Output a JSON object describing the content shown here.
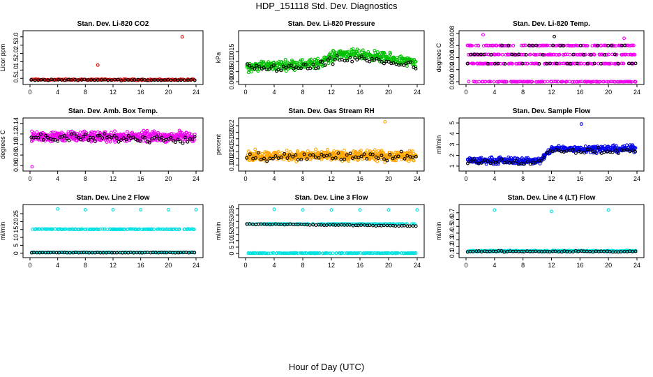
{
  "figure_title": "HDP_151118  Std. Dev. Diagnostics",
  "x_caption": "Hour of Day (UTC)",
  "chart_data": [
    {
      "type": "scatter",
      "title": "Stan. Dev. Li-820 CO2",
      "ylabel": "Licor ppm",
      "xlim": [
        0,
        24
      ],
      "ylim": [
        0.3,
        3.2
      ],
      "xticks": [
        0,
        4,
        8,
        12,
        16,
        20,
        24
      ],
      "yticks": [
        0.5,
        1.0,
        1.5,
        2.0,
        2.5,
        3.0
      ],
      "ytick_labels": [
        "0.5",
        "1.0",
        "1.5",
        "2.0",
        "2.5",
        "3.0"
      ],
      "series": [
        {
          "name": "red",
          "color": "#e00000",
          "base": 0.42,
          "spread": 0.06,
          "n": 140,
          "outliers": [
            {
              "x": 9.8,
              "y": 1.3
            },
            {
              "x": 22.0,
              "y": 3.0
            }
          ]
        },
        {
          "name": "black",
          "color": "#000000",
          "base": 0.4,
          "spread": 0.05,
          "n": 50,
          "outliers": []
        }
      ]
    },
    {
      "type": "scatter",
      "title": "Stan. Dev. Li-820 Pressure",
      "ylabel": "kPa",
      "xlim": [
        0,
        24
      ],
      "ylim": [
        0,
        0.024
      ],
      "xticks": [
        0,
        4,
        8,
        12,
        16,
        20,
        24
      ],
      "yticks": [
        0.0,
        0.005,
        0.01,
        0.015
      ],
      "ytick_labels": [
        "0.000",
        "0.005",
        "0.010",
        "0.015"
      ],
      "series": [
        {
          "name": "green",
          "color": "#00c000",
          "segments": [
            [
              0,
              0.0075
            ],
            [
              10,
              0.009
            ],
            [
              13,
              0.014
            ],
            [
              18,
              0.013
            ],
            [
              24,
              0.009
            ]
          ],
          "spread": 0.0035,
          "n": 420,
          "outliers": []
        },
        {
          "name": "black",
          "color": "#000000",
          "segments": [
            [
              0,
              0.0065
            ],
            [
              10,
              0.0075
            ],
            [
              13,
              0.011
            ],
            [
              18,
              0.011
            ],
            [
              24,
              0.0075
            ]
          ],
          "spread": 0.003,
          "n": 70,
          "outliers": []
        }
      ]
    },
    {
      "type": "scatter",
      "title": "Stan. Dev. Li-820 Temp.",
      "ylabel": "degrees C",
      "xlim": [
        0,
        24
      ],
      "ylim": [
        0,
        0.008
      ],
      "xticks": [
        0,
        4,
        8,
        12,
        16,
        20,
        24
      ],
      "yticks": [
        0.0,
        0.002,
        0.004,
        0.006,
        0.008
      ],
      "ytick_labels": [
        "0.000",
        "0.002",
        "0.004",
        "0.006",
        "0.008"
      ],
      "series": [
        {
          "name": "magenta",
          "color": "#ee00ee",
          "levels": [
            0.0,
            0.003,
            0.0045,
            0.006
          ],
          "n": 520,
          "outliers": [
            {
              "x": 2.4,
              "y": 0.0078
            },
            {
              "x": 22.2,
              "y": 0.0072
            }
          ]
        },
        {
          "name": "black",
          "color": "#000000",
          "levels": [
            0.003,
            0.0045,
            0.006
          ],
          "n": 50,
          "outliers": [
            {
              "x": 12.4,
              "y": 0.0075
            }
          ]
        }
      ]
    },
    {
      "type": "scatter",
      "title": "Stan. Dev. Amb. Box Temp.",
      "ylabel": "degrees C",
      "xlim": [
        0,
        24
      ],
      "ylim": [
        0.055,
        0.145
      ],
      "xticks": [
        0,
        4,
        8,
        12,
        16,
        20,
        24
      ],
      "yticks": [
        0.06,
        0.08,
        0.1,
        0.12,
        0.14
      ],
      "ytick_labels": [
        "0.06",
        "0.08",
        "0.10",
        "0.12",
        "0.14"
      ],
      "series": [
        {
          "name": "magenta",
          "color": "#ee00ee",
          "base": 0.115,
          "spread": 0.014,
          "n": 470,
          "outliers": [
            {
              "x": 0.3,
              "y": 0.058
            }
          ]
        },
        {
          "name": "black",
          "color": "#000000",
          "base": 0.112,
          "spread": 0.012,
          "n": 70,
          "outliers": []
        }
      ]
    },
    {
      "type": "scatter",
      "title": "Stan. Dev. Gas Stream RH",
      "ylabel": "percent",
      "xlim": [
        0,
        24
      ],
      "ylim": [
        0.09,
        0.235
      ],
      "xticks": [
        0,
        4,
        8,
        12,
        16,
        20,
        24
      ],
      "yticks": [
        0.1,
        0.12,
        0.14,
        0.16,
        0.18,
        0.2,
        0.22
      ],
      "ytick_labels": [
        "0.10",
        "0.12",
        "0.14",
        "0.16",
        "0.18",
        "0.20",
        "0.22"
      ],
      "series": [
        {
          "name": "orange",
          "color": "#ffa500",
          "base": 0.128,
          "spread": 0.022,
          "n": 520,
          "outliers": [
            {
              "x": 19.5,
              "y": 0.232
            }
          ]
        },
        {
          "name": "black",
          "color": "#000000",
          "base": 0.125,
          "spread": 0.02,
          "n": 60,
          "outliers": []
        }
      ]
    },
    {
      "type": "scatter",
      "title": "Stan. Dev. Sample Flow",
      "ylabel": "ml/min",
      "xlim": [
        0,
        24
      ],
      "ylim": [
        0.8,
        5.2
      ],
      "xticks": [
        0,
        4,
        8,
        12,
        16,
        20,
        24
      ],
      "yticks": [
        1,
        2,
        3,
        4,
        5
      ],
      "ytick_labels": [
        "1",
        "2",
        "3",
        "4",
        "5"
      ],
      "series": [
        {
          "name": "blue",
          "color": "#0000ee",
          "segments": [
            [
              0,
              1.5
            ],
            [
              9,
              1.5
            ],
            [
              10.5,
              1.5
            ],
            [
              12,
              2.6
            ],
            [
              24,
              2.6
            ]
          ],
          "spread": 0.45,
          "n": 420,
          "outliers": [
            {
              "x": 16.2,
              "y": 4.9
            }
          ]
        },
        {
          "name": "black",
          "color": "#000000",
          "segments": [
            [
              0,
              1.45
            ],
            [
              9,
              1.4
            ],
            [
              10.5,
              1.4
            ],
            [
              12,
              2.4
            ],
            [
              24,
              2.4
            ]
          ],
          "spread": 0.35,
          "n": 60,
          "outliers": []
        }
      ]
    },
    {
      "type": "scatter",
      "title": "Stan. Dev. Line 2 Flow",
      "ylabel": "ml/min",
      "xlim": [
        0,
        24
      ],
      "ylim": [
        -1,
        29
      ],
      "xticks": [
        0,
        4,
        8,
        12,
        16,
        20,
        24
      ],
      "yticks": [
        0,
        5,
        10,
        15,
        20,
        25
      ],
      "ytick_labels": [
        "0",
        "5",
        "10",
        "15",
        "20",
        "25"
      ],
      "series": [
        {
          "name": "cyan",
          "color": "#00e0e0",
          "levels": [
            15.2,
            0.5
          ],
          "n": 320,
          "outliers": [
            {
              "x": 4,
              "y": 28
            },
            {
              "x": 8,
              "y": 27.5
            },
            {
              "x": 12,
              "y": 27.5
            },
            {
              "x": 16,
              "y": 27.5
            },
            {
              "x": 20,
              "y": 27.5
            },
            {
              "x": 24,
              "y": 27.5
            }
          ]
        },
        {
          "name": "black",
          "color": "#000000",
          "levels": [
            0.4
          ],
          "n": 60,
          "outliers": []
        }
      ]
    },
    {
      "type": "scatter",
      "title": "Stan. Dev. Line 3 Flow",
      "ylabel": "ml/min",
      "xlim": [
        0,
        24
      ],
      "ylim": [
        -1,
        36
      ],
      "xticks": [
        0,
        4,
        8,
        12,
        16,
        20,
        24
      ],
      "yticks": [
        0,
        5,
        10,
        15,
        20,
        25,
        30,
        35
      ],
      "ytick_labels": [
        "0",
        "5",
        "10",
        "15",
        "20",
        "25",
        "30",
        "35"
      ],
      "series": [
        {
          "name": "cyan",
          "color": "#00e0e0",
          "levels": [
            23,
            0.3
          ],
          "n": 320,
          "outliers": [
            {
              "x": 4,
              "y": 34.5
            },
            {
              "x": 8,
              "y": 34
            },
            {
              "x": 12,
              "y": 34
            },
            {
              "x": 16,
              "y": 34
            },
            {
              "x": 20,
              "y": 34
            },
            {
              "x": 24,
              "y": 34
            }
          ]
        },
        {
          "name": "black",
          "color": "#000000",
          "segments": [
            [
              0,
              23
            ],
            [
              24,
              21.5
            ]
          ],
          "spread": 0.4,
          "n": 60,
          "outliers": []
        }
      ]
    },
    {
      "type": "scatter",
      "title": "Stan. Dev. Line 4 (LT) Flow",
      "ylabel": "ml/min",
      "xlim": [
        0,
        24
      ],
      "ylim": [
        0.08,
        0.78
      ],
      "xticks": [
        0,
        4,
        8,
        12,
        16,
        20,
        24
      ],
      "yticks": [
        0.1,
        0.2,
        0.3,
        0.4,
        0.5,
        0.6,
        0.7
      ],
      "ytick_labels": [
        "0.1",
        "0.2",
        "0.3",
        "0.4",
        "0.5",
        "0.6",
        "0.7"
      ],
      "series": [
        {
          "name": "cyan",
          "color": "#00e0e0",
          "base": 0.135,
          "spread": 0.015,
          "n": 320,
          "outliers": [
            {
              "x": 4,
              "y": 0.74
            },
            {
              "x": 12,
              "y": 0.72
            },
            {
              "x": 20,
              "y": 0.74
            }
          ]
        },
        {
          "name": "black",
          "color": "#000000",
          "base": 0.13,
          "spread": 0.014,
          "n": 60,
          "outliers": []
        }
      ]
    }
  ]
}
